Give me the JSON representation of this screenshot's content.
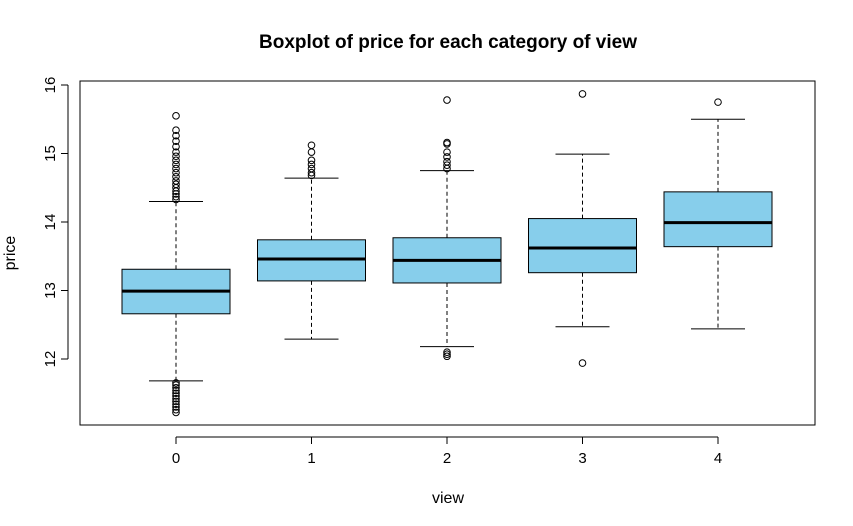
{
  "chart_data": {
    "type": "boxplot",
    "title": "Boxplot of price for each category of view",
    "xlabel": "view",
    "ylabel": "price",
    "categories": [
      "0",
      "1",
      "2",
      "3",
      "4"
    ],
    "yticks": [
      "12",
      "13",
      "14",
      "15",
      "16"
    ],
    "ylim": [
      11.1,
      16.05
    ],
    "box_color": "#87CEEB",
    "grid": false,
    "legend": "none",
    "boxes": [
      {
        "category": "0",
        "whisker_low": 11.68,
        "q1": 12.66,
        "median": 12.99,
        "q3": 13.31,
        "whisker_high": 14.3,
        "outliers": [
          11.22,
          11.26,
          11.3,
          11.34,
          11.38,
          11.42,
          11.46,
          11.5,
          11.54,
          11.58,
          11.62,
          11.65,
          14.33,
          14.37,
          14.41,
          14.45,
          14.5,
          14.55,
          14.6,
          14.66,
          14.72,
          14.78,
          14.84,
          14.9,
          14.96,
          15.02,
          15.1,
          15.18,
          15.26,
          15.34,
          15.55
        ]
      },
      {
        "category": "1",
        "whisker_low": 12.29,
        "q1": 13.14,
        "median": 13.46,
        "q3": 13.74,
        "whisker_high": 14.64,
        "outliers": [
          14.68,
          14.72,
          14.78,
          14.84,
          14.9,
          15.02,
          15.12
        ]
      },
      {
        "category": "2",
        "whisker_low": 12.18,
        "q1": 13.11,
        "median": 13.44,
        "q3": 13.77,
        "whisker_high": 14.75,
        "outliers": [
          12.04,
          12.07,
          12.1,
          14.78,
          14.83,
          14.88,
          14.95,
          15.02,
          15.14,
          15.16,
          15.78
        ]
      },
      {
        "category": "3",
        "whisker_low": 12.47,
        "q1": 13.26,
        "median": 13.62,
        "q3": 14.05,
        "whisker_high": 14.99,
        "outliers": [
          11.94,
          15.87
        ]
      },
      {
        "category": "4",
        "whisker_low": 12.44,
        "q1": 13.64,
        "median": 13.99,
        "q3": 14.44,
        "whisker_high": 15.5,
        "outliers": [
          15.75
        ]
      }
    ]
  }
}
